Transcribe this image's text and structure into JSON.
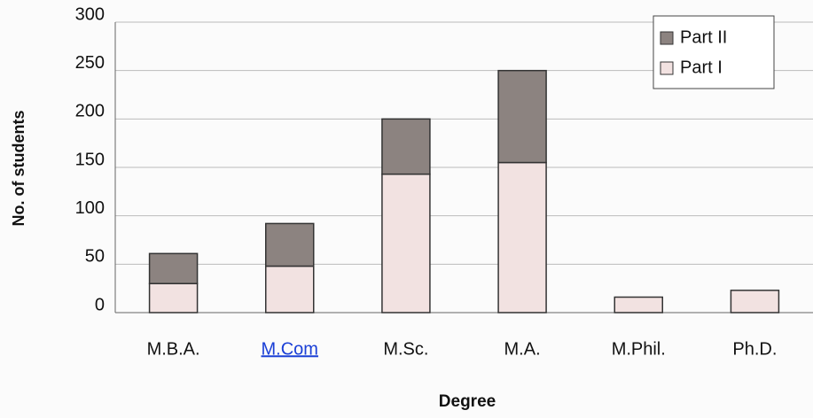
{
  "chart_data": {
    "type": "stacked_bar",
    "categories": [
      "M.B.A.",
      "M.Com",
      "M.Sc.",
      "M.A.",
      "M.Phil.",
      "Ph.D."
    ],
    "series": [
      {
        "name": "Part I",
        "color": "#f2e2e1",
        "values": [
          30,
          48,
          143,
          155,
          16,
          23
        ]
      },
      {
        "name": "Part II",
        "color": "#8c8380",
        "values": [
          31,
          44,
          57,
          95,
          null,
          null
        ]
      }
    ],
    "ylim": [
      0,
      300
    ],
    "yticks": [
      0,
      50,
      100,
      150,
      200,
      250,
      300
    ],
    "grid": true,
    "xlabel": "Degree",
    "ylabel": "No. of students",
    "legend": "upper right"
  }
}
